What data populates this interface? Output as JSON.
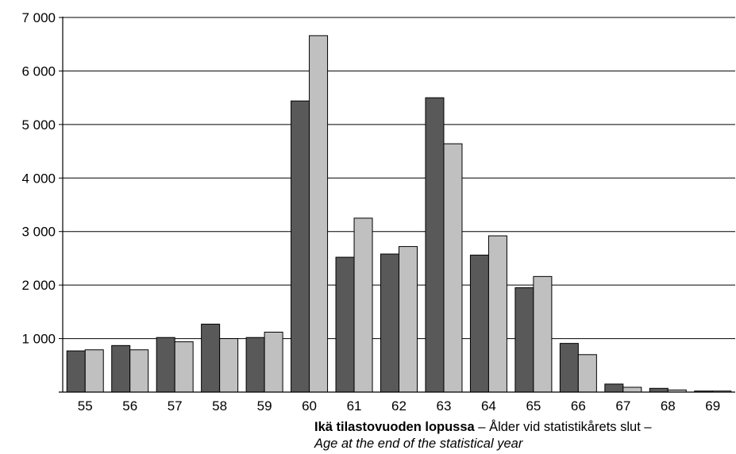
{
  "chart_data": {
    "type": "bar",
    "categories": [
      "55",
      "56",
      "57",
      "58",
      "59",
      "60",
      "61",
      "62",
      "63",
      "64",
      "65",
      "66",
      "67",
      "68",
      "69"
    ],
    "series": [
      {
        "values": [
          770,
          870,
          1020,
          1270,
          1020,
          5440,
          2520,
          2580,
          5500,
          2560,
          1950,
          910,
          150,
          70,
          20
        ]
      },
      {
        "values": [
          790,
          790,
          940,
          1000,
          1120,
          6660,
          3250,
          2720,
          4640,
          2920,
          2160,
          700,
          90,
          40,
          20
        ]
      }
    ],
    "colors": [
      "#595959",
      "#c0c0c0"
    ],
    "ylim": [
      0,
      7000
    ],
    "yticks": [
      1000,
      2000,
      3000,
      4000,
      5000,
      6000,
      7000
    ],
    "ytick_labels": [
      "1 000",
      "2 000",
      "3 000",
      "4 000",
      "5 000",
      "6 000",
      "7 000"
    ],
    "grid": true,
    "xlabel_bold": "Ikä tilastovuoden lopussa",
    "xlabel_regular": " – Ålder vid statistikårets slut –",
    "xlabel_italic": "Age at the end of the statistical year"
  }
}
